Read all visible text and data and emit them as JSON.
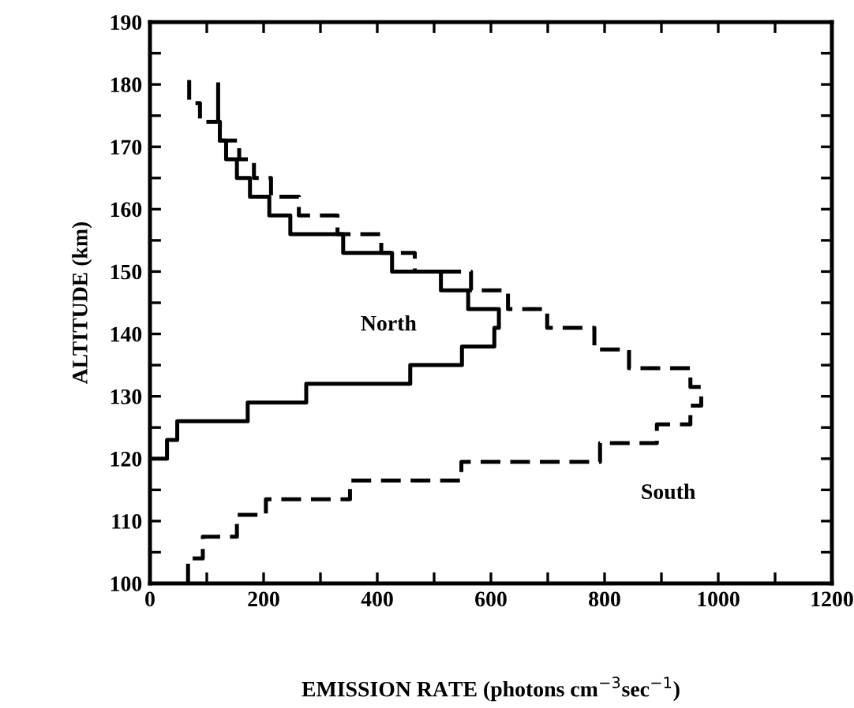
{
  "chart_data": {
    "type": "line",
    "xlabel": "EMISSION RATE (photons cm$^{−3}$sec$^{−1}$)",
    "ylabel": "ALTITUDE (km)",
    "xlim": [
      0,
      1200
    ],
    "ylim": [
      100,
      190
    ],
    "xticks": [
      0,
      {
        "value": 100,
        "label": null
      },
      200,
      {
        "value": 300,
        "label": null
      },
      400,
      {
        "value": 500,
        "label": null
      },
      600,
      {
        "value": 700,
        "label": null
      },
      800,
      {
        "value": 900,
        "label": null
      },
      1000,
      {
        "value": 1100,
        "label": null
      },
      1200
    ],
    "yticks": [
      100,
      {
        "value": 105,
        "label": null
      },
      110,
      {
        "value": 115,
        "label": null
      },
      120,
      {
        "value": 125,
        "label": null
      },
      130,
      {
        "value": 135,
        "label": null
      },
      140,
      {
        "value": 145,
        "label": null
      },
      150,
      {
        "value": 155,
        "label": null
      },
      160,
      {
        "value": 165,
        "label": null
      },
      170,
      {
        "value": 175,
        "label": null
      },
      180,
      {
        "value": 185,
        "label": null
      },
      190
    ],
    "grid": false,
    "legend": false,
    "series": [
      {
        "name": "North",
        "color": "#000000",
        "line_style": "solid",
        "x": [
          0,
          30,
          30,
          48,
          48,
          172,
          172,
          275,
          275,
          458,
          458,
          549,
          549,
          606,
          606,
          614,
          614,
          560,
          560,
          512,
          512,
          426,
          426,
          340,
          340,
          247,
          247,
          210,
          210,
          176,
          176,
          153,
          153,
          134,
          134,
          123,
          123,
          120,
          120
        ],
        "values": [
          120,
          120,
          123,
          123,
          126,
          126,
          129,
          129,
          132,
          132,
          135,
          135,
          138,
          138,
          141,
          141,
          144,
          144,
          147,
          147,
          150,
          150,
          153,
          153,
          156,
          156,
          159,
          159,
          162,
          162,
          165,
          165,
          168,
          168,
          171,
          171,
          174,
          174,
          180
        ]
      },
      {
        "name": "South",
        "color": "#000000",
        "line_style": "dashed",
        "x": [
          67,
          67,
          93,
          93,
          153,
          153,
          204,
          204,
          352,
          352,
          548,
          548,
          792,
          792,
          892,
          892,
          951,
          951,
          970,
          970,
          951,
          951,
          843,
          843,
          782,
          782,
          699,
          699,
          630,
          630,
          565,
          565,
          466,
          466,
          407,
          407,
          330,
          330,
          262,
          262,
          213,
          213,
          183,
          183,
          157,
          157,
          123,
          123,
          88,
          88,
          69,
          69
        ],
        "values": [
          100,
          104,
          104,
          107.5,
          107.5,
          111,
          111,
          113.5,
          113.5,
          116.5,
          116.5,
          119.5,
          119.5,
          122.5,
          122.5,
          125.5,
          125.5,
          128.5,
          128.5,
          131.5,
          131.5,
          134.5,
          134.5,
          137.5,
          137.5,
          141,
          141,
          144,
          144,
          147,
          147,
          150,
          150,
          153,
          153,
          156,
          156,
          159,
          159,
          162,
          162,
          165,
          165,
          168,
          168,
          171,
          171,
          174,
          174,
          177,
          177,
          181
        ]
      }
    ]
  }
}
